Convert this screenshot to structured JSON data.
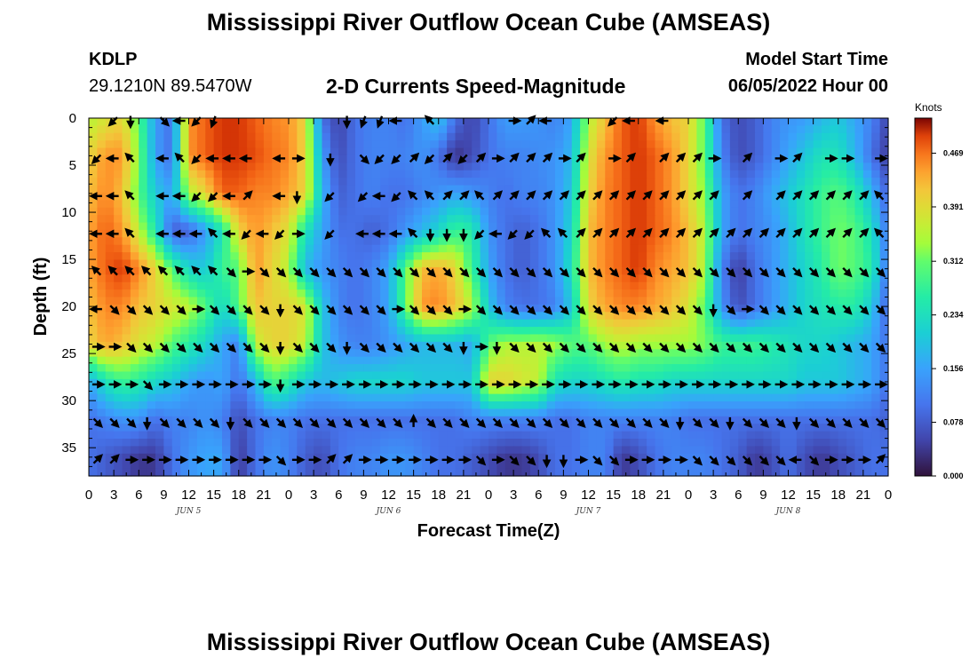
{
  "header": {
    "title": "Mississippi River Outflow Ocean Cube (AMSEAS)",
    "station_id": "KDLP",
    "station_coords": "29.1210N  89.5470W",
    "plot_title": "2-D Currents Speed-Magnitude",
    "model_label": "Model Start Time",
    "model_time": "06/05/2022 Hour 00"
  },
  "footer": {
    "title": "Mississippi River Outflow Ocean Cube (AMSEAS)"
  },
  "chart_data": {
    "type": "heatmap",
    "xlabel": "Forecast Time(Z)",
    "ylabel": "Depth (ft)",
    "x_ticks": [
      "0",
      "3",
      "6",
      "9",
      "12",
      "15",
      "18",
      "21",
      "0",
      "3",
      "6",
      "9",
      "12",
      "15",
      "18",
      "21",
      "0",
      "3",
      "6",
      "9",
      "12",
      "15",
      "18",
      "21",
      "0",
      "3",
      "6",
      "9",
      "12",
      "15",
      "18",
      "21",
      "0"
    ],
    "x_range_hours": [
      0,
      96
    ],
    "day_labels": [
      {
        "label": "JUN 5",
        "hour": 12
      },
      {
        "label": "JUN 6",
        "hour": 36
      },
      {
        "label": "JUN 7",
        "hour": 60
      },
      {
        "label": "JUN 8",
        "hour": 84
      }
    ],
    "y_ticks": [
      "0",
      "5",
      "10",
      "15",
      "20",
      "25",
      "30",
      "35"
    ],
    "y_tick_values": [
      0,
      5,
      10,
      15,
      20,
      25,
      30,
      35
    ],
    "ylim": [
      0,
      38
    ],
    "y_inverted": true,
    "colorbar": {
      "unit": "Knots",
      "ticks": [
        "0.469",
        "0.391",
        "0.312",
        "0.234",
        "0.156",
        "0.078",
        "0.000"
      ],
      "range": [
        0.0,
        0.52
      ],
      "colormap": "turbo"
    },
    "depth_levels_ft": [
      0,
      4,
      8,
      12,
      16,
      20,
      24,
      28,
      32,
      36
    ],
    "hours": [
      0,
      2,
      4,
      6,
      8,
      10,
      12,
      14,
      16,
      18,
      20,
      22,
      24,
      26,
      28,
      30,
      32,
      34,
      36,
      38,
      40,
      42,
      44,
      46,
      48,
      50,
      52,
      54,
      56,
      58,
      60,
      62,
      64,
      66,
      68,
      70,
      72,
      74,
      76,
      78,
      80,
      82,
      84,
      86,
      88,
      90,
      92,
      94,
      96
    ],
    "speed_knots": [
      [
        0.35,
        0.38,
        0.4,
        0.3,
        0.15,
        0.1,
        0.45,
        0.48,
        0.5,
        0.5,
        0.48,
        0.46,
        0.45,
        0.4,
        0.1,
        0.05,
        0.1,
        0.12,
        0.12,
        0.1,
        0.15,
        0.2,
        0.1,
        0.05,
        0.1,
        0.15,
        0.15,
        0.14,
        0.12,
        0.16,
        0.35,
        0.42,
        0.48,
        0.5,
        0.45,
        0.42,
        0.4,
        0.3,
        0.1,
        0.06,
        0.08,
        0.12,
        0.14,
        0.15,
        0.18,
        0.2,
        0.16,
        0.12,
        0.05
      ],
      [
        0.4,
        0.45,
        0.45,
        0.32,
        0.15,
        0.1,
        0.45,
        0.48,
        0.5,
        0.5,
        0.49,
        0.47,
        0.46,
        0.4,
        0.15,
        0.06,
        0.1,
        0.12,
        0.12,
        0.12,
        0.14,
        0.1,
        0.03,
        0.06,
        0.1,
        0.12,
        0.12,
        0.13,
        0.14,
        0.18,
        0.38,
        0.45,
        0.48,
        0.5,
        0.48,
        0.45,
        0.4,
        0.3,
        0.12,
        0.06,
        0.08,
        0.12,
        0.16,
        0.2,
        0.24,
        0.24,
        0.18,
        0.1,
        0.04
      ],
      [
        0.42,
        0.46,
        0.42,
        0.3,
        0.2,
        0.16,
        0.35,
        0.4,
        0.48,
        0.48,
        0.46,
        0.46,
        0.44,
        0.4,
        0.18,
        0.08,
        0.1,
        0.12,
        0.1,
        0.1,
        0.12,
        0.14,
        0.16,
        0.14,
        0.12,
        0.1,
        0.12,
        0.12,
        0.14,
        0.2,
        0.4,
        0.46,
        0.48,
        0.5,
        0.48,
        0.45,
        0.4,
        0.32,
        0.16,
        0.1,
        0.12,
        0.16,
        0.2,
        0.24,
        0.28,
        0.3,
        0.26,
        0.18,
        0.08
      ],
      [
        0.44,
        0.48,
        0.45,
        0.36,
        0.25,
        0.08,
        0.08,
        0.15,
        0.24,
        0.4,
        0.45,
        0.42,
        0.38,
        0.24,
        0.16,
        0.1,
        0.1,
        0.08,
        0.1,
        0.14,
        0.18,
        0.22,
        0.28,
        0.26,
        0.14,
        0.1,
        0.08,
        0.1,
        0.14,
        0.22,
        0.42,
        0.46,
        0.48,
        0.5,
        0.48,
        0.46,
        0.42,
        0.35,
        0.16,
        0.1,
        0.12,
        0.14,
        0.18,
        0.24,
        0.28,
        0.32,
        0.3,
        0.24,
        0.1
      ],
      [
        0.44,
        0.48,
        0.5,
        0.46,
        0.4,
        0.3,
        0.22,
        0.2,
        0.28,
        0.3,
        0.45,
        0.4,
        0.35,
        0.18,
        0.14,
        0.12,
        0.1,
        0.12,
        0.16,
        0.3,
        0.42,
        0.44,
        0.4,
        0.28,
        0.16,
        0.1,
        0.08,
        0.1,
        0.14,
        0.24,
        0.42,
        0.46,
        0.48,
        0.5,
        0.46,
        0.44,
        0.42,
        0.34,
        0.12,
        0.04,
        0.1,
        0.14,
        0.18,
        0.22,
        0.26,
        0.32,
        0.3,
        0.26,
        0.1
      ],
      [
        0.42,
        0.46,
        0.46,
        0.42,
        0.4,
        0.38,
        0.36,
        0.3,
        0.22,
        0.3,
        0.42,
        0.4,
        0.4,
        0.38,
        0.2,
        0.12,
        0.1,
        0.12,
        0.16,
        0.3,
        0.45,
        0.46,
        0.42,
        0.36,
        0.2,
        0.12,
        0.1,
        0.1,
        0.12,
        0.2,
        0.4,
        0.44,
        0.46,
        0.46,
        0.44,
        0.42,
        0.38,
        0.3,
        0.14,
        0.06,
        0.1,
        0.14,
        0.18,
        0.22,
        0.24,
        0.26,
        0.26,
        0.2,
        0.08
      ],
      [
        0.4,
        0.44,
        0.42,
        0.38,
        0.36,
        0.3,
        0.26,
        0.22,
        0.16,
        0.12,
        0.36,
        0.4,
        0.4,
        0.36,
        0.2,
        0.14,
        0.12,
        0.12,
        0.14,
        0.16,
        0.18,
        0.18,
        0.18,
        0.16,
        0.3,
        0.35,
        0.35,
        0.36,
        0.34,
        0.3,
        0.3,
        0.34,
        0.36,
        0.34,
        0.34,
        0.34,
        0.34,
        0.32,
        0.28,
        0.28,
        0.28,
        0.26,
        0.24,
        0.22,
        0.22,
        0.2,
        0.18,
        0.16,
        0.1
      ],
      [
        0.16,
        0.24,
        0.28,
        0.26,
        0.22,
        0.2,
        0.16,
        0.14,
        0.16,
        0.1,
        0.18,
        0.3,
        0.26,
        0.2,
        0.18,
        0.2,
        0.22,
        0.22,
        0.22,
        0.22,
        0.2,
        0.2,
        0.2,
        0.2,
        0.4,
        0.4,
        0.38,
        0.36,
        0.24,
        0.22,
        0.22,
        0.24,
        0.26,
        0.24,
        0.24,
        0.22,
        0.22,
        0.22,
        0.22,
        0.22,
        0.22,
        0.22,
        0.22,
        0.2,
        0.2,
        0.2,
        0.18,
        0.16,
        0.1
      ],
      [
        0.1,
        0.12,
        0.14,
        0.14,
        0.1,
        0.12,
        0.12,
        0.14,
        0.12,
        0.06,
        0.1,
        0.12,
        0.12,
        0.1,
        0.1,
        0.1,
        0.1,
        0.1,
        0.1,
        0.1,
        0.1,
        0.1,
        0.1,
        0.12,
        0.12,
        0.12,
        0.12,
        0.12,
        0.1,
        0.1,
        0.12,
        0.12,
        0.12,
        0.12,
        0.12,
        0.12,
        0.1,
        0.1,
        0.1,
        0.1,
        0.1,
        0.1,
        0.1,
        0.1,
        0.1,
        0.1,
        0.1,
        0.1,
        0.08
      ],
      [
        0.1,
        0.08,
        0.06,
        0.04,
        0.04,
        0.1,
        0.14,
        0.16,
        0.16,
        0.04,
        0.1,
        0.14,
        0.12,
        0.08,
        0.06,
        0.1,
        0.12,
        0.12,
        0.14,
        0.14,
        0.12,
        0.1,
        0.1,
        0.08,
        0.06,
        0.04,
        0.04,
        0.06,
        0.1,
        0.1,
        0.12,
        0.12,
        0.04,
        0.06,
        0.1,
        0.12,
        0.12,
        0.12,
        0.1,
        0.08,
        0.04,
        0.06,
        0.1,
        0.06,
        0.04,
        0.06,
        0.08,
        0.1,
        0.1
      ]
    ],
    "arrow_rows_ft": [
      0,
      4,
      8,
      12,
      16,
      20,
      24,
      28,
      32,
      36
    ],
    "arrow_hours": [
      1,
      3,
      5,
      7,
      9,
      11,
      13,
      15,
      17,
      19,
      21,
      23,
      25,
      27,
      29,
      31,
      33,
      35,
      37,
      39,
      41,
      43,
      45,
      47,
      49,
      51,
      53,
      55,
      57,
      59,
      61,
      63,
      65,
      67,
      69,
      71,
      73,
      75,
      77,
      79,
      81,
      83,
      85,
      87,
      89,
      91,
      93,
      95
    ],
    "arrow_direction_deg": [
      [
        null,
        225,
        180,
        null,
        135,
        270,
        225,
        200,
        null,
        null,
        null,
        null,
        null,
        null,
        null,
        180,
        200,
        200,
        270,
        null,
        315,
        null,
        null,
        null,
        null,
        90,
        45,
        270,
        null,
        null,
        null,
        225,
        270,
        null,
        270,
        null,
        null,
        null,
        null,
        null,
        null,
        null,
        null,
        null,
        null,
        null,
        null,
        null
      ],
      [
        225,
        270,
        315,
        null,
        270,
        315,
        225,
        270,
        270,
        270,
        null,
        270,
        90,
        null,
        180,
        null,
        135,
        225,
        225,
        45,
        225,
        45,
        225,
        45,
        90,
        45,
        45,
        45,
        90,
        45,
        null,
        90,
        45,
        null,
        45,
        45,
        45,
        90,
        null,
        45,
        null,
        90,
        45,
        null,
        90,
        90,
        null,
        90
      ],
      [
        270,
        270,
        315,
        null,
        270,
        270,
        225,
        225,
        270,
        45,
        null,
        270,
        180,
        null,
        225,
        null,
        225,
        270,
        225,
        315,
        315,
        45,
        45,
        315,
        45,
        45,
        45,
        45,
        45,
        45,
        45,
        45,
        45,
        45,
        45,
        45,
        45,
        45,
        null,
        45,
        null,
        45,
        45,
        45,
        45,
        45,
        45,
        315
      ],
      [
        270,
        270,
        315,
        null,
        270,
        270,
        270,
        315,
        270,
        225,
        270,
        225,
        90,
        null,
        225,
        null,
        270,
        270,
        270,
        315,
        180,
        180,
        180,
        225,
        270,
        225,
        225,
        315,
        315,
        45,
        45,
        45,
        45,
        45,
        45,
        45,
        45,
        45,
        45,
        45,
        45,
        45,
        45,
        45,
        45,
        45,
        45,
        315
      ],
      [
        315,
        315,
        315,
        315,
        315,
        315,
        315,
        315,
        135,
        90,
        135,
        135,
        135,
        135,
        135,
        135,
        135,
        135,
        135,
        135,
        135,
        135,
        135,
        135,
        135,
        135,
        135,
        135,
        135,
        135,
        135,
        135,
        135,
        135,
        135,
        135,
        135,
        135,
        135,
        135,
        135,
        135,
        135,
        135,
        135,
        135,
        135,
        135
      ],
      [
        270,
        135,
        135,
        135,
        135,
        135,
        90,
        135,
        135,
        135,
        135,
        180,
        135,
        135,
        135,
        135,
        135,
        135,
        90,
        135,
        135,
        135,
        90,
        135,
        135,
        135,
        135,
        135,
        135,
        135,
        135,
        135,
        135,
        135,
        135,
        135,
        135,
        180,
        135,
        90,
        135,
        135,
        135,
        135,
        135,
        135,
        135,
        135
      ],
      [
        90,
        90,
        135,
        135,
        135,
        135,
        135,
        135,
        135,
        135,
        135,
        180,
        135,
        135,
        135,
        180,
        135,
        135,
        135,
        135,
        135,
        135,
        180,
        90,
        180,
        135,
        135,
        135,
        135,
        135,
        135,
        135,
        135,
        135,
        135,
        135,
        135,
        135,
        135,
        135,
        135,
        135,
        135,
        135,
        135,
        135,
        135,
        135
      ],
      [
        90,
        90,
        90,
        135,
        90,
        90,
        90,
        90,
        90,
        90,
        90,
        180,
        90,
        90,
        90,
        90,
        90,
        90,
        90,
        90,
        90,
        90,
        90,
        90,
        90,
        90,
        90,
        90,
        90,
        90,
        90,
        90,
        90,
        90,
        90,
        90,
        90,
        90,
        90,
        90,
        90,
        90,
        90,
        90,
        90,
        90,
        90,
        90
      ],
      [
        135,
        135,
        135,
        180,
        135,
        135,
        135,
        135,
        180,
        135,
        135,
        135,
        135,
        135,
        135,
        135,
        135,
        135,
        135,
        0,
        135,
        135,
        135,
        135,
        135,
        135,
        135,
        135,
        135,
        135,
        135,
        135,
        135,
        135,
        135,
        180,
        135,
        135,
        180,
        135,
        135,
        135,
        180,
        135,
        135,
        135,
        135,
        135
      ],
      [
        45,
        45,
        90,
        90,
        90,
        90,
        90,
        90,
        90,
        90,
        90,
        135,
        90,
        90,
        45,
        45,
        90,
        90,
        90,
        90,
        90,
        90,
        90,
        135,
        90,
        135,
        135,
        180,
        180,
        90,
        135,
        135,
        90,
        90,
        90,
        90,
        135,
        135,
        135,
        135,
        135,
        135,
        270,
        135,
        90,
        90,
        90,
        45
      ]
    ]
  }
}
